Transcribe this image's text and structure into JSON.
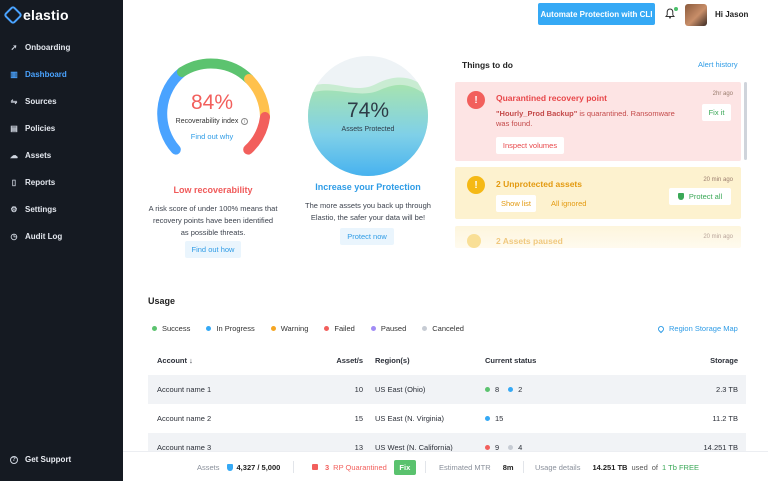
{
  "app": {
    "logo_text": "elastio"
  },
  "sidebar": {
    "items": [
      {
        "label": "Onboarding",
        "icon": "rocket-icon"
      },
      {
        "label": "Dashboard",
        "icon": "chart-icon",
        "active": true
      },
      {
        "label": "Sources",
        "icon": "sources-icon"
      },
      {
        "label": "Policies",
        "icon": "policies-icon"
      },
      {
        "label": "Assets",
        "icon": "cloud-icon"
      },
      {
        "label": "Reports",
        "icon": "report-icon"
      },
      {
        "label": "Settings",
        "icon": "gear-icon"
      },
      {
        "label": "Audit Log",
        "icon": "history-icon"
      }
    ],
    "support_label": "Get Support"
  },
  "header": {
    "cli_button": "Automate Protection with CLI",
    "greeting": "Hi Jason"
  },
  "recoverability": {
    "percent_text": "84%",
    "value": 0.84,
    "label": "Recoverability index",
    "find_out_why": "Find out why",
    "title": "Low recoverability",
    "description": "A risk score of under 100% means that recovery points have been identified as possible threats.",
    "button": "Find out how",
    "colors": [
      "#f25f5c",
      "#f5a623",
      "#ffc14d",
      "#5cc36f",
      "#4aa3ff"
    ]
  },
  "protection": {
    "percent_text": "74%",
    "value": 0.74,
    "label": "Assets Protected",
    "title": "Increase your Protection",
    "description": "The more assets you back up through Elastio, the safer your data will be!",
    "button": "Protect now"
  },
  "todo": {
    "title": "Things to do",
    "alert_history": "Alert history",
    "cards": [
      {
        "title": "Quarantined recovery point",
        "time": "2hr ago",
        "text_quote": "\"Hourly_Prod Backup\"",
        "text_rest": " is quarantined. Ransomware was found.",
        "primary_button": "Inspect volumes",
        "secondary_button": "Fix it"
      },
      {
        "title": "2 Unprotected assets",
        "time": "20 min ago",
        "button_1": "Show list",
        "button_2": "All ignored",
        "button_3": "Protect all"
      },
      {
        "title": "2 Assets paused",
        "time": "20 min ago"
      }
    ]
  },
  "usage": {
    "title": "Usage",
    "legend": [
      {
        "label": "Success",
        "color": "#5cc36f"
      },
      {
        "label": "In Progress",
        "color": "#35a9f5"
      },
      {
        "label": "Warning",
        "color": "#f5a623"
      },
      {
        "label": "Failed",
        "color": "#f25f5c"
      },
      {
        "label": "Paused",
        "color": "#a18cf5"
      },
      {
        "label": "Canceled",
        "color": "#c7ccd4"
      }
    ],
    "region_map": "Region Storage Map",
    "columns": [
      "Account",
      "Asset/s",
      "Region(s)",
      "Current status",
      "Storage"
    ],
    "sort_arrow": "↓",
    "rows": [
      {
        "account": "Account name 1",
        "assets": "10",
        "region": "US East (Ohio)",
        "status": [
          {
            "color": "#5cc36f",
            "value": "8"
          },
          {
            "color": "#35a9f5",
            "value": "2"
          }
        ],
        "storage": "2.3 TB"
      },
      {
        "account": "Account name 2",
        "assets": "15",
        "region": "US East (N. Virginia)",
        "status": [
          {
            "color": "#35a9f5",
            "value": "15"
          }
        ],
        "storage": "11.2 TB"
      },
      {
        "account": "Account name 3",
        "assets": "13",
        "region": "US West (N. California)",
        "status": [
          {
            "color": "#f25f5c",
            "value": "9"
          },
          {
            "color": "#c7ccd4",
            "value": "4"
          }
        ],
        "storage": "14.251 TB"
      }
    ]
  },
  "bottom": {
    "assets_label": "Assets",
    "assets_value": "4,327 / 5,000",
    "rp_count": "3",
    "rp_label": "RP Quarantined",
    "fix_label": "Fix",
    "mtr_label": "Estimated MTR",
    "mtr_value": "8m",
    "usage_label": "Usage details",
    "usage_value": "14.251 TB",
    "used_of": "used",
    "of_label": "of",
    "free_label": "1 Tb FREE"
  }
}
